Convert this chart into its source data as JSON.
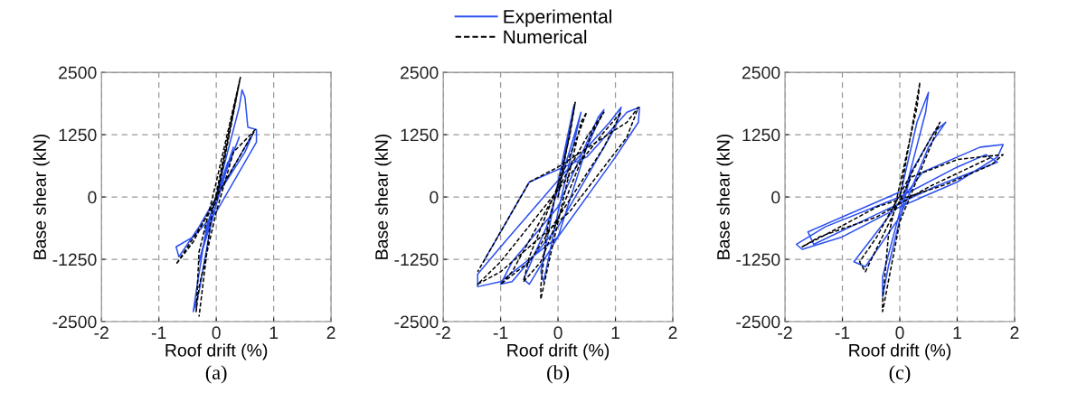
{
  "chart_data": [
    {
      "type": "line",
      "xlabel": "Roof drift (%)",
      "ylabel": "Base shear (kN)",
      "annotations": [
        "(a)"
      ],
      "xlim": [
        -2,
        2
      ],
      "ylim": [
        -2500,
        2500
      ],
      "xticks": [
        -2,
        -1,
        0,
        1,
        2
      ],
      "yticks": [
        -2500,
        -1250,
        0,
        1250,
        2500
      ],
      "grid": true,
      "legend": "top",
      "series": [
        {
          "name": "Experimental",
          "color": "#2b50f0",
          "line_style": "solid",
          "x": [
            0,
            0.2,
            -0.2,
            0.3,
            -0.3,
            0.4,
            0.45,
            0.5,
            0.55,
            0.7,
            0.7,
            0.4,
            0,
            -0.4,
            -0.7,
            -0.65,
            -0.3,
            0,
            0.3,
            0.65,
            0.5,
            0,
            -0.2,
            -0.35,
            -0.4,
            -0.3,
            -0.1,
            0.1,
            0.4
          ],
          "values": [
            0,
            700,
            -700,
            1000,
            -1300,
            1800,
            2150,
            2000,
            1400,
            1350,
            1100,
            500,
            -300,
            -800,
            -1000,
            -1200,
            -600,
            0,
            600,
            1300,
            900,
            0,
            -800,
            -1900,
            -2300,
            -1900,
            -600,
            300,
            1200
          ]
        },
        {
          "name": "Numerical",
          "color": "#000000",
          "line_style": "dashed",
          "x": [
            0,
            0.42,
            0.3,
            0,
            -0.3,
            -0.35,
            -0.3,
            0,
            0.3,
            0.68,
            0.5,
            0,
            -0.4,
            -0.7,
            -0.5,
            0,
            0.42,
            0.2,
            -0.1,
            -0.3
          ],
          "values": [
            0,
            2400,
            1800,
            300,
            -1100,
            -2300,
            -1800,
            -300,
            900,
            1350,
            1000,
            0,
            -900,
            -1350,
            -1000,
            -100,
            2400,
            1200,
            -500,
            -2400
          ]
        }
      ]
    },
    {
      "type": "line",
      "xlabel": "Roof drift (%)",
      "ylabel": "Base shear (kN)",
      "annotations": [
        "(b)"
      ],
      "xlim": [
        -2,
        2
      ],
      "ylim": [
        -2500,
        2500
      ],
      "xticks": [
        -2,
        -1,
        0,
        1,
        2
      ],
      "yticks": [
        -2500,
        -1250,
        0,
        1250,
        2500
      ],
      "grid": true,
      "series": [
        {
          "color": "#2b50f0",
          "line_style": "solid",
          "x": [
            0,
            0.25,
            0.28,
            0,
            -0.3,
            -0.25,
            0,
            0.4,
            0.3,
            -0.2,
            -0.6,
            -0.5,
            0,
            0.5,
            0.8,
            0.7,
            0,
            -0.8,
            -1.0,
            -0.8,
            0,
            1.0,
            1.1,
            0.9,
            0.2,
            -1.0,
            -1.4,
            -1.4,
            -1.0,
            0,
            1.0,
            1.4,
            1.42,
            1.2,
            0.5,
            -0.5,
            -1.3
          ],
          "values": [
            0,
            1700,
            1850,
            300,
            -1500,
            -1700,
            -300,
            1700,
            1300,
            -600,
            -1650,
            -1750,
            -800,
            1000,
            1750,
            1600,
            -200,
            -1300,
            -1750,
            -1700,
            -600,
            1400,
            1800,
            1500,
            600,
            -1000,
            -1550,
            -1800,
            -1700,
            -800,
            800,
            1500,
            1800,
            1700,
            800,
            300,
            -1300
          ]
        },
        {
          "color": "#000000",
          "line_style": "dashed",
          "x": [
            0,
            0.3,
            0.2,
            -0.2,
            -0.3,
            -0.3,
            -0.1,
            0.4,
            0.5,
            0.3,
            -0.5,
            -0.6,
            -0.3,
            0.6,
            0.8,
            0.5,
            -0.8,
            -1.0,
            -0.5,
            0.8,
            1.1,
            0.8,
            -1.0,
            -1.4,
            -1.0,
            0.2,
            1.2,
            1.4,
            1.2,
            0,
            -0.5,
            -1.4
          ],
          "values": [
            0,
            1900,
            1200,
            -700,
            -1800,
            -2050,
            -1000,
            1500,
            1700,
            1100,
            -1200,
            -1700,
            -1300,
            1300,
            1700,
            1200,
            -1500,
            -1750,
            -1300,
            1000,
            1700,
            1300,
            -1300,
            -1750,
            -1500,
            -300,
            1200,
            1800,
            1500,
            600,
            300,
            -1500
          ]
        }
      ]
    },
    {
      "type": "line",
      "xlabel": "Roof drift (%)",
      "ylabel": "Base shear (kN)",
      "annotations": [
        "(c)"
      ],
      "xlim": [
        -2,
        2
      ],
      "ylim": [
        -2500,
        2500
      ],
      "xticks": [
        -2,
        -1,
        0,
        1,
        2
      ],
      "yticks": [
        -2500,
        -1250,
        0,
        1250,
        2500
      ],
      "grid": true,
      "series": [
        {
          "color": "#2b50f0",
          "line_style": "solid",
          "x": [
            0,
            0.3,
            0.5,
            0.45,
            0,
            -0.3,
            -0.3,
            -0.2,
            0.2,
            0.6,
            0.8,
            0.5,
            0,
            -0.6,
            -0.8,
            -0.4,
            0.4,
            1.0,
            1.4,
            1.8,
            1.7,
            1.0,
            0,
            -1.0,
            -1.7,
            -1.8,
            -1.3,
            0,
            1.0,
            1.5,
            1.7,
            0.6,
            -0.5,
            -1.5,
            -1.6,
            0
          ],
          "values": [
            0,
            1500,
            2100,
            1700,
            -300,
            -1600,
            -2000,
            -1400,
            500,
            1300,
            1500,
            1000,
            -400,
            -1400,
            -1300,
            -700,
            500,
            800,
            1000,
            1050,
            800,
            300,
            -200,
            -800,
            -1050,
            -950,
            -600,
            0,
            600,
            850,
            700,
            200,
            -400,
            -950,
            -700,
            100
          ]
        },
        {
          "color": "#000000",
          "line_style": "dashed",
          "x": [
            0,
            0.35,
            0.3,
            -0.2,
            -0.3,
            -0.3,
            0,
            0.6,
            0.7,
            0.5,
            -0.4,
            -0.7,
            -0.6,
            0.2,
            1.0,
            1.8,
            1.6,
            0.8,
            -0.4,
            -1.2,
            -1.7,
            -1.4,
            -0.4,
            0.5,
            1.6
          ],
          "values": [
            0,
            2300,
            1800,
            -800,
            -2100,
            -2300,
            -500,
            1200,
            1500,
            1100,
            -800,
            -1300,
            -1500,
            400,
            750,
            850,
            650,
            250,
            -200,
            -700,
            -1000,
            -800,
            -400,
            200,
            800
          ]
        }
      ]
    }
  ]
}
